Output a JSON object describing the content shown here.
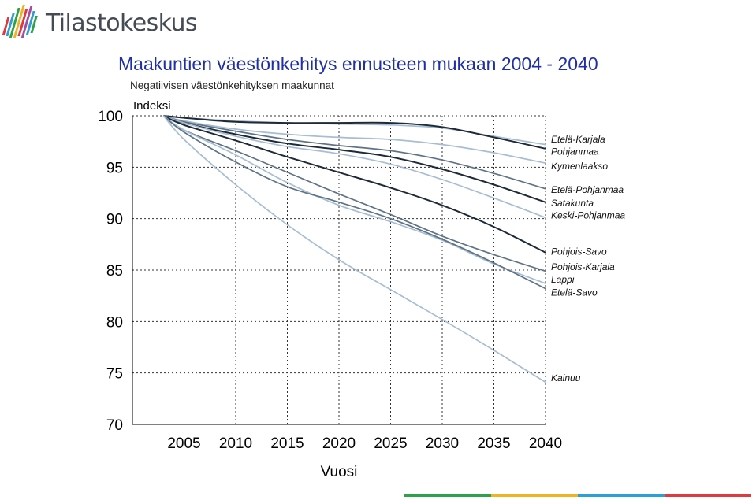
{
  "header": {
    "brand": "Tilastokeskus"
  },
  "colors": {
    "title": "#1f2fa6",
    "dark_series": "#1e2a38",
    "mid_series": "#5f7386",
    "light_series": "#a7bdd4",
    "bottom_bar": [
      "#2ea24a",
      "#f0b323",
      "#2a9fd8",
      "#e03a3e"
    ]
  },
  "chart_data": {
    "type": "line",
    "title": "Maakuntien väestönkehitys ennusteen mukaan 2004 - 2040",
    "subtitle": "Negatiivisen väestönkehityksen maakunnat",
    "ylabel": "Indeksi",
    "xlabel": "Vuosi",
    "xlim": [
      2000,
      2040
    ],
    "ylim": [
      70,
      100
    ],
    "xticks": [
      2005,
      2010,
      2015,
      2020,
      2025,
      2030,
      2035,
      2040
    ],
    "yticks": [
      70,
      75,
      80,
      85,
      90,
      95,
      100
    ],
    "grid": true,
    "x": [
      2003,
      2005,
      2010,
      2015,
      2020,
      2025,
      2030,
      2035,
      2040
    ],
    "series": [
      {
        "name": "Etelä-Karjala",
        "tone": "light",
        "values": [
          100,
          99.8,
          99.5,
          99.3,
          99.2,
          99.1,
          98.8,
          98.0,
          97.2
        ]
      },
      {
        "name": "Pohjanmaa",
        "tone": "dark",
        "values": [
          100,
          99.8,
          99.4,
          99.3,
          99.3,
          99.3,
          98.9,
          97.9,
          96.8
        ]
      },
      {
        "name": "Kymenlaakso",
        "tone": "light",
        "values": [
          100,
          99.5,
          98.7,
          98.2,
          97.9,
          97.7,
          97.2,
          96.4,
          95.4
        ]
      },
      {
        "name": "Etelä-Pohjanmaa",
        "tone": "mid",
        "values": [
          100,
          99.4,
          98.5,
          97.7,
          97.1,
          96.6,
          95.7,
          94.4,
          92.9
        ]
      },
      {
        "name": "Satakunta",
        "tone": "dark",
        "values": [
          100,
          99.3,
          98.2,
          97.3,
          96.7,
          96.0,
          94.8,
          93.3,
          91.6
        ]
      },
      {
        "name": "Keski-Pohjanmaa",
        "tone": "light",
        "values": [
          100,
          99.3,
          98.0,
          97.0,
          96.3,
          95.3,
          93.8,
          92.0,
          90.1
        ]
      },
      {
        "name": "Pohjois-Savo",
        "tone": "dark",
        "values": [
          100,
          99.1,
          97.6,
          96.0,
          94.5,
          93.0,
          91.3,
          89.2,
          86.7
        ]
      },
      {
        "name": "Pohjois-Karjala",
        "tone": "mid",
        "values": [
          100,
          98.6,
          96.6,
          94.5,
          92.4,
          90.4,
          88.3,
          86.5,
          84.9
        ]
      },
      {
        "name": "Lappi",
        "tone": "light",
        "values": [
          100,
          98.6,
          96.2,
          93.5,
          91.3,
          89.7,
          87.9,
          85.6,
          83.7
        ]
      },
      {
        "name": "Etelä-Savo",
        "tone": "mid",
        "values": [
          100,
          98.4,
          95.5,
          93.1,
          91.6,
          90.0,
          88.0,
          85.7,
          83.2
        ]
      },
      {
        "name": "Kainuu",
        "tone": "light",
        "values": [
          100,
          97.7,
          93.3,
          89.4,
          86.0,
          83.1,
          80.2,
          77.2,
          74.1
        ]
      }
    ],
    "label_positions_y": [
      97.7,
      96.5,
      95.1,
      92.8,
      91.5,
      90.3,
      86.8,
      85.3,
      84.1,
      82.8,
      74.5
    ]
  }
}
